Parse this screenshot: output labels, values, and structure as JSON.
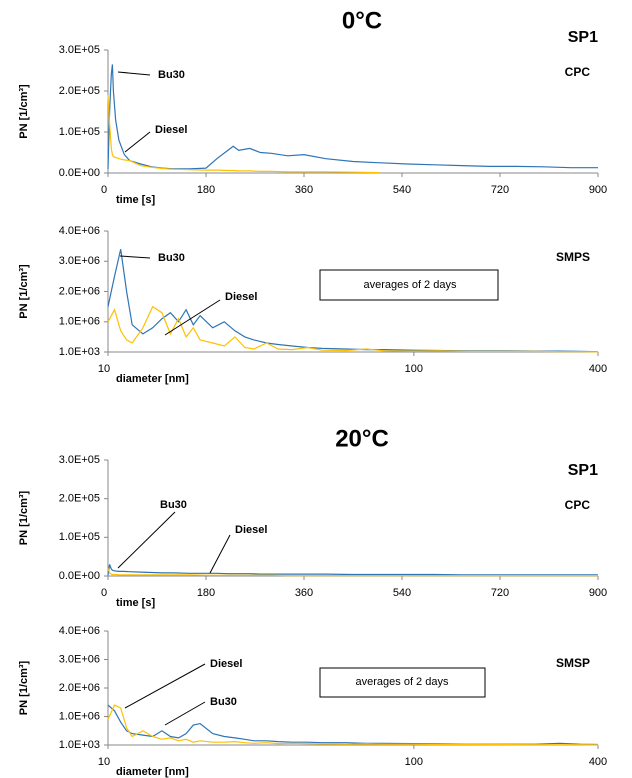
{
  "chart_data": [
    {
      "type": "line",
      "title": "0°C",
      "annotations": [
        {
          "text": "SP1"
        },
        {
          "text": "CPC"
        }
      ],
      "ylabel": "PN [1/cm³]",
      "xlabel": "time [s]",
      "x": [
        0,
        3,
        6,
        8,
        10,
        14,
        20,
        30,
        40,
        60,
        80,
        100,
        120,
        150,
        180,
        200,
        220,
        230,
        240,
        260,
        280,
        300,
        330,
        360,
        400,
        450,
        500,
        550,
        600,
        650,
        700,
        750,
        800,
        850,
        900
      ],
      "xlim": [
        0,
        900
      ],
      "xticks": [
        0,
        180,
        360,
        540,
        720,
        900
      ],
      "ylim": [
        0,
        300000
      ],
      "yticks": [
        {
          "value": 0,
          "label": "0.0E+00"
        },
        {
          "value": 100000,
          "label": "1.0E+05"
        },
        {
          "value": 200000,
          "label": "2.0E+05"
        },
        {
          "value": 300000,
          "label": "3.0E+05"
        }
      ],
      "series": [
        {
          "name": "Bu30",
          "color": "#2e75b6",
          "values": [
            10000,
            150000,
            240000,
            265000,
            200000,
            130000,
            80000,
            45000,
            30000,
            22000,
            15000,
            12000,
            10000,
            10000,
            12000,
            35000,
            55000,
            65000,
            55000,
            60000,
            50000,
            48000,
            42000,
            45000,
            35000,
            28000,
            25000,
            22000,
            20000,
            18000,
            16000,
            16000,
            15000,
            13000,
            13000
          ]
        },
        {
          "name": "Diesel",
          "color": "#ffc000",
          "values": [
            190000,
            120000,
            60000,
            45000,
            40000,
            38000,
            35000,
            32000,
            30000,
            18000,
            14000,
            11000,
            9000,
            8000,
            7000,
            7000,
            6000,
            6000,
            5000,
            5000,
            4000,
            4000,
            3000,
            3000,
            3000,
            2000,
            1000,
            null,
            null,
            null,
            null,
            null,
            null,
            null,
            null
          ]
        }
      ]
    },
    {
      "type": "line",
      "annotations": [
        {
          "text": "SMPS"
        },
        {
          "text": "averages of 2 days"
        }
      ],
      "ylabel": "PN [1/cm³]",
      "xlabel": "diameter [nm]",
      "xscale": "log",
      "x": [
        10,
        10.5,
        11,
        11.5,
        12,
        13,
        14,
        15,
        16,
        17,
        18,
        19,
        20,
        22,
        24,
        26,
        28,
        30,
        33,
        36,
        40,
        45,
        50,
        60,
        70,
        80,
        100,
        120,
        150,
        200,
        250,
        300,
        350,
        400
      ],
      "xlim": [
        10,
        400
      ],
      "xticks": [
        10,
        100,
        400
      ],
      "ylim": [
        1000,
        4000000
      ],
      "yticks": [
        {
          "value": 1000,
          "label": "1.0E+03"
        },
        {
          "value": 1000000,
          "label": "1.0E+06"
        },
        {
          "value": 2000000,
          "label": "2.0E+06"
        },
        {
          "value": 3000000,
          "label": "3.0E+06"
        },
        {
          "value": 4000000,
          "label": "4.0E+06"
        }
      ],
      "series": [
        {
          "name": "Bu30",
          "color": "#2e75b6",
          "values": [
            1500000,
            2500000,
            3400000,
            2000000,
            900000,
            600000,
            800000,
            1100000,
            1300000,
            1000000,
            1400000,
            900000,
            1200000,
            800000,
            1000000,
            700000,
            500000,
            400000,
            300000,
            250000,
            200000,
            150000,
            120000,
            100000,
            80000,
            80000,
            60000,
            50000,
            40000,
            40000,
            30000,
            30000,
            20000,
            10000
          ]
        },
        {
          "name": "Diesel",
          "color": "#ffc000",
          "values": [
            1000000,
            1400000,
            700000,
            400000,
            300000,
            800000,
            1500000,
            1300000,
            600000,
            1100000,
            500000,
            800000,
            400000,
            300000,
            200000,
            500000,
            150000,
            100000,
            300000,
            100000,
            80000,
            150000,
            60000,
            50000,
            100000,
            40000,
            30000,
            40000,
            20000,
            20000,
            20000,
            10000,
            10000,
            5000
          ]
        }
      ]
    },
    {
      "type": "line",
      "title": "20°C",
      "annotations": [
        {
          "text": "SP1"
        },
        {
          "text": "CPC"
        }
      ],
      "ylabel": "PN [1/cm³]",
      "xlabel": "time [s]",
      "x": [
        0,
        3,
        6,
        8,
        10,
        14,
        20,
        30,
        40,
        60,
        80,
        100,
        120,
        150,
        180,
        200,
        220,
        230,
        240,
        260,
        280,
        300,
        330,
        360,
        400,
        450,
        500,
        550,
        600,
        650,
        700,
        750,
        800,
        850,
        900
      ],
      "xlim": [
        0,
        900
      ],
      "xticks": [
        0,
        180,
        360,
        540,
        720,
        900
      ],
      "ylim": [
        0,
        300000
      ],
      "yticks": [
        {
          "value": 0,
          "label": "0.0E+00"
        },
        {
          "value": 100000,
          "label": "1.0E+05"
        },
        {
          "value": 200000,
          "label": "2.0E+05"
        },
        {
          "value": 300000,
          "label": "3.0E+05"
        }
      ],
      "series": [
        {
          "name": "Bu30",
          "color": "#2e75b6",
          "values": [
            2000,
            30000,
            18000,
            15000,
            14000,
            13000,
            12000,
            12000,
            11000,
            10000,
            9000,
            8000,
            8000,
            7000,
            7000,
            7000,
            6000,
            6000,
            6000,
            6000,
            5000,
            5000,
            5000,
            5000,
            5000,
            4000,
            4000,
            4000,
            4000,
            3000,
            3000,
            3000,
            3000,
            3000,
            3000
          ]
        },
        {
          "name": "Diesel",
          "color": "#ffc000",
          "values": [
            20000,
            8000,
            5000,
            4000,
            4000,
            4000,
            3000,
            3000,
            3000,
            3000,
            3000,
            3000,
            3000,
            3000,
            2000,
            2000,
            2000,
            2000,
            2000,
            2000,
            2000,
            2000,
            1000,
            1000,
            1000,
            1000,
            1000,
            1000,
            1000,
            1000,
            1000,
            1000,
            1000,
            1000,
            1000
          ]
        }
      ]
    },
    {
      "type": "line",
      "annotations": [
        {
          "text": "SMSP"
        },
        {
          "text": "averages of 2 days"
        }
      ],
      "ylabel": "PN [1/cm³]",
      "xlabel": "diameter [nm]",
      "xscale": "log",
      "x": [
        10,
        10.5,
        11,
        11.5,
        12,
        13,
        14,
        15,
        16,
        17,
        18,
        19,
        20,
        22,
        24,
        26,
        28,
        30,
        33,
        36,
        40,
        45,
        50,
        60,
        70,
        80,
        100,
        120,
        150,
        200,
        250,
        300,
        350,
        400
      ],
      "xlim": [
        10,
        400
      ],
      "xticks": [
        10,
        100,
        400
      ],
      "ylim": [
        1000,
        4000000
      ],
      "yticks": [
        {
          "value": 1000,
          "label": "1.0E+03"
        },
        {
          "value": 1000000,
          "label": "1.0E+06"
        },
        {
          "value": 2000000,
          "label": "2.0E+06"
        },
        {
          "value": 3000000,
          "label": "3.0E+06"
        },
        {
          "value": 4000000,
          "label": "4.0E+06"
        }
      ],
      "series": [
        {
          "name": "Bu30",
          "color": "#2e75b6",
          "values": [
            1400000,
            1200000,
            800000,
            500000,
            400000,
            350000,
            300000,
            500000,
            300000,
            250000,
            400000,
            700000,
            750000,
            400000,
            300000,
            250000,
            200000,
            150000,
            150000,
            120000,
            100000,
            100000,
            80000,
            80000,
            60000,
            60000,
            50000,
            40000,
            30000,
            30000,
            30000,
            60000,
            30000,
            20000
          ]
        },
        {
          "name": "Diesel",
          "color": "#ffc000",
          "values": [
            900000,
            1400000,
            1300000,
            600000,
            300000,
            500000,
            300000,
            200000,
            250000,
            150000,
            200000,
            100000,
            150000,
            100000,
            100000,
            120000,
            80000,
            60000,
            80000,
            50000,
            60000,
            50000,
            40000,
            30000,
            40000,
            30000,
            30000,
            20000,
            20000,
            15000,
            10000,
            10000,
            10000,
            5000
          ]
        }
      ]
    }
  ]
}
